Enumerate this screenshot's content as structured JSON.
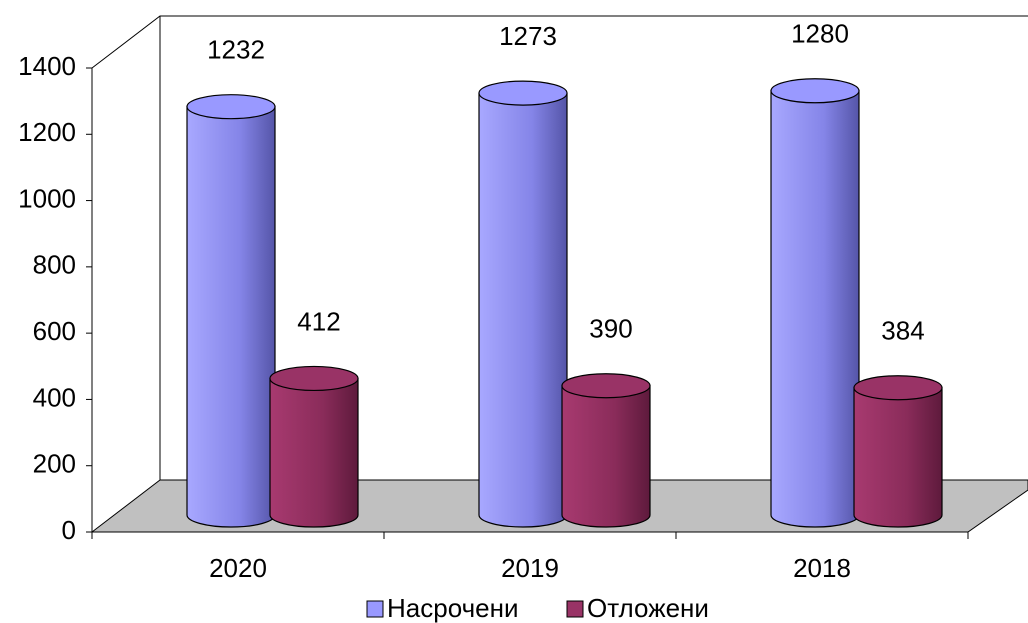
{
  "chart_data": {
    "type": "cylinder",
    "categories": [
      "2020",
      "2019",
      "2018"
    ],
    "series": [
      {
        "name": "Насрочени",
        "color": "#9999ff",
        "values": [
          1232,
          1273,
          1280
        ]
      },
      {
        "name": "Отложени",
        "color": "#993366",
        "values": [
          412,
          390,
          384
        ]
      }
    ],
    "ylim": [
      0,
      1400
    ],
    "yticks": [
      0,
      200,
      400,
      600,
      800,
      1000,
      1200,
      1400
    ],
    "grid": false,
    "legend": "bottom"
  }
}
